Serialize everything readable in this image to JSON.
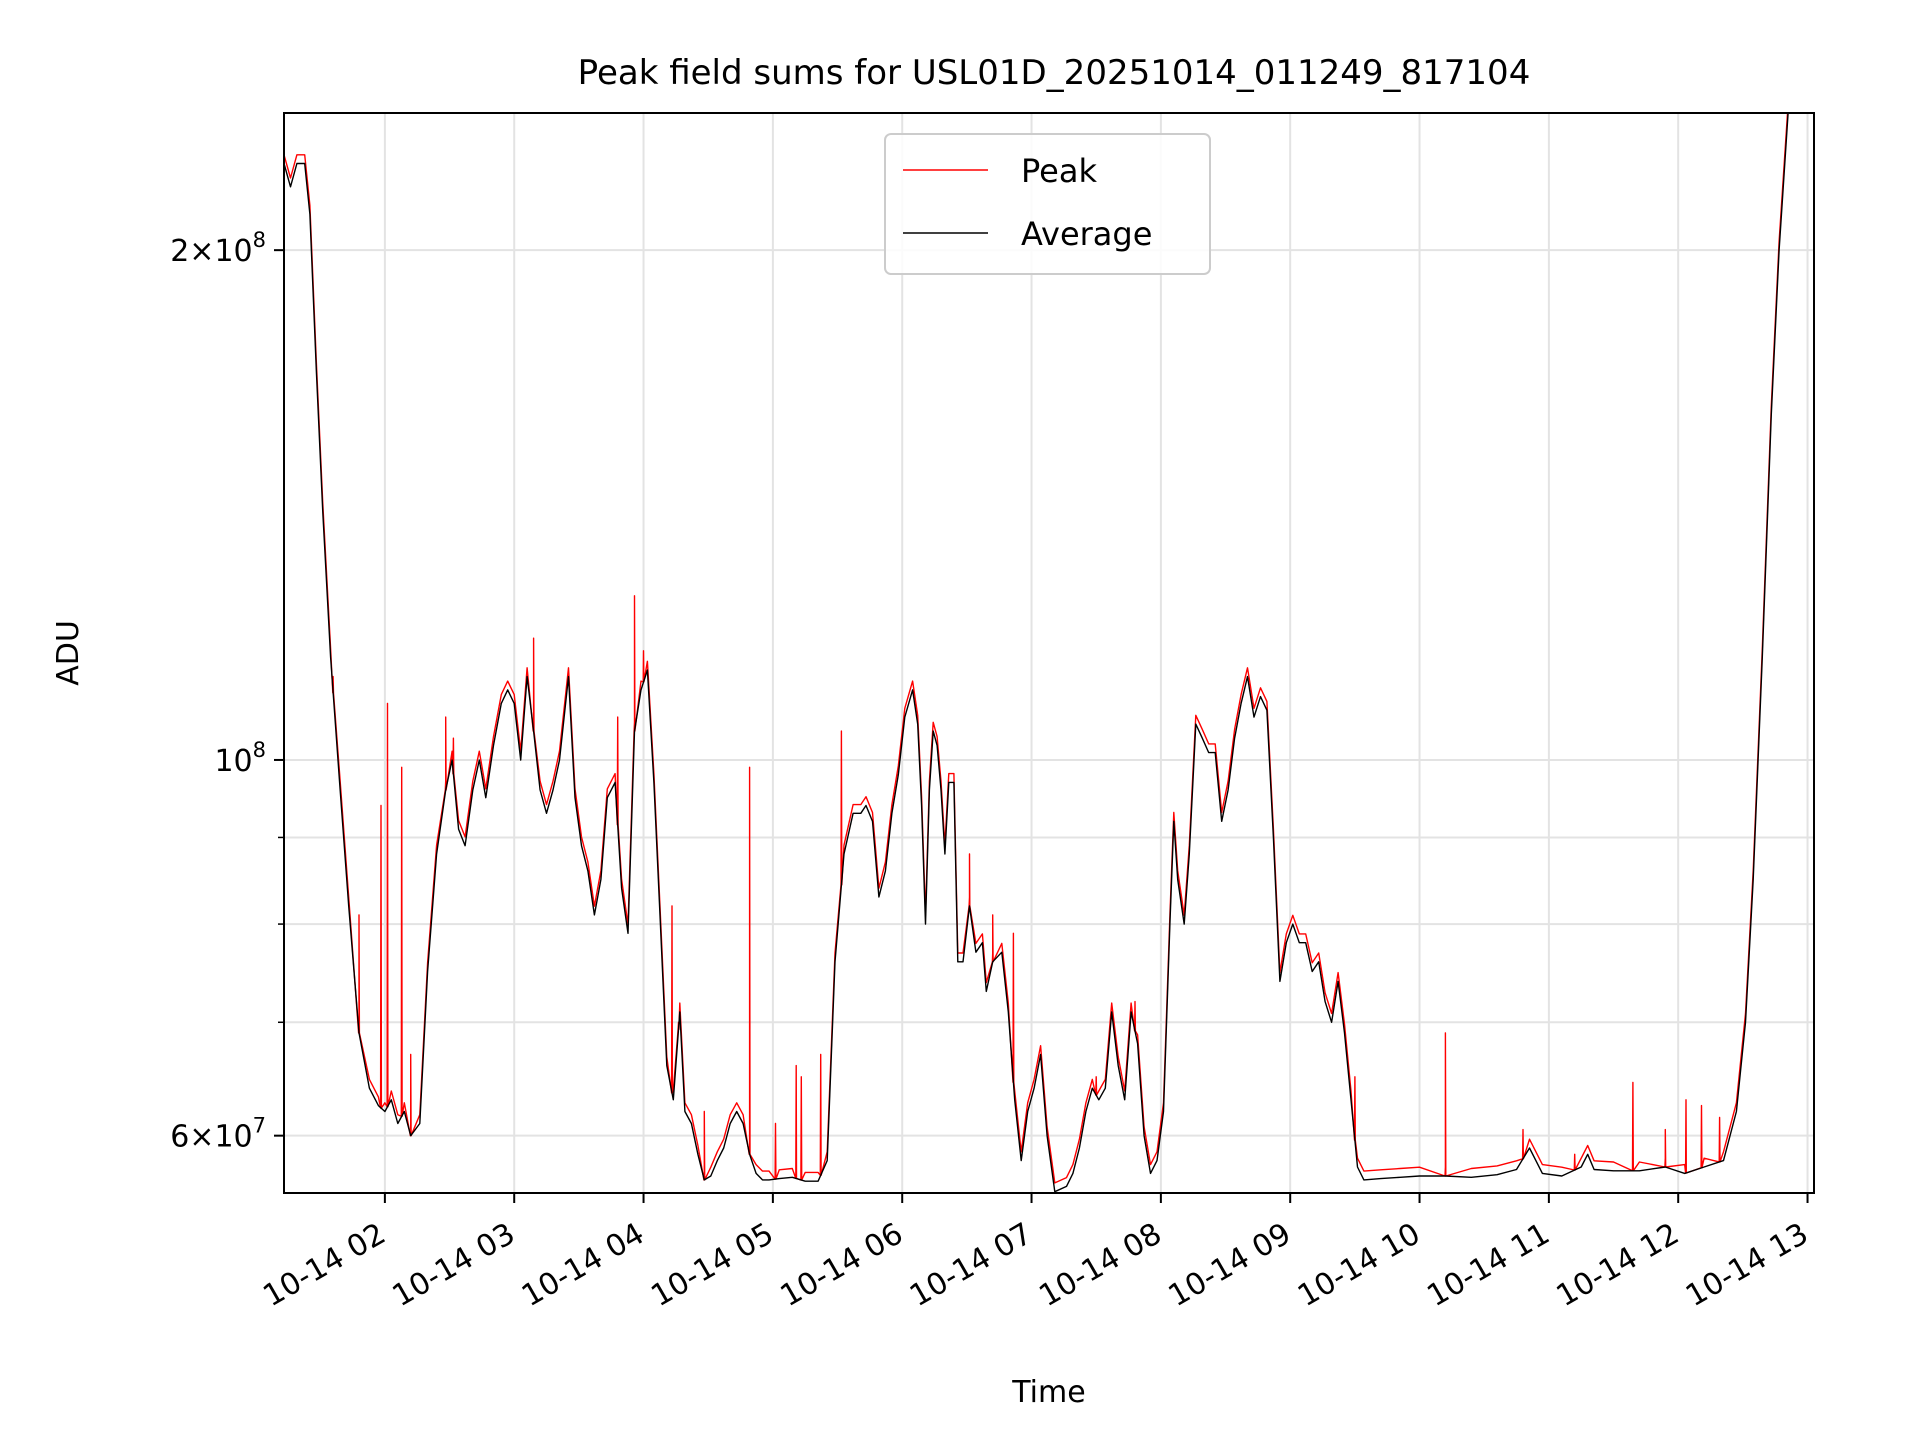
{
  "chart_data": {
    "type": "line",
    "title": "Peak field sums for USL01D_20251014_011249_817104",
    "xlabel": "Time",
    "ylabel": "ADU",
    "yscale": "log",
    "xlim": [
      1.22,
      13.05
    ],
    "ylim": [
      55500000,
      241000000
    ],
    "grid": true,
    "legend_position": "top-center",
    "x_ticks": [
      {
        "value": 2,
        "label": "10-14 02"
      },
      {
        "value": 3,
        "label": "10-14 03"
      },
      {
        "value": 4,
        "label": "10-14 04"
      },
      {
        "value": 5,
        "label": "10-14 05"
      },
      {
        "value": 6,
        "label": "10-14 06"
      },
      {
        "value": 7,
        "label": "10-14 07"
      },
      {
        "value": 8,
        "label": "10-14 08"
      },
      {
        "value": 9,
        "label": "10-14 09"
      },
      {
        "value": 10,
        "label": "10-14 10"
      },
      {
        "value": 11,
        "label": "10-14 11"
      },
      {
        "value": 12,
        "label": "10-14 12"
      },
      {
        "value": 13,
        "label": "10-14 13"
      }
    ],
    "y_major_ticks": [
      {
        "value": 60000000,
        "base": "6",
        "mult": "×",
        "pow": "10",
        "exp": "7"
      },
      {
        "value": 100000000,
        "base": "",
        "mult": "",
        "pow": "10",
        "exp": "8"
      },
      {
        "value": 200000000,
        "base": "2",
        "mult": "×",
        "pow": "10",
        "exp": "8"
      }
    ],
    "y_minor_ticks": [
      70000000,
      80000000,
      90000000
    ],
    "series": [
      {
        "name": "Peak",
        "color": "#ff0000"
      },
      {
        "name": "Average",
        "color": "#000000"
      }
    ],
    "average_points": [
      [
        1.22,
        225000000
      ],
      [
        1.27,
        218000000
      ],
      [
        1.32,
        225000000
      ],
      [
        1.38,
        225000000
      ],
      [
        1.42,
        210000000
      ],
      [
        1.47,
        170000000
      ],
      [
        1.52,
        140000000
      ],
      [
        1.58,
        115000000
      ],
      [
        1.65,
        97000000
      ],
      [
        1.72,
        82000000
      ],
      [
        1.8,
        69000000
      ],
      [
        1.88,
        64000000
      ],
      [
        1.95,
        62500000
      ],
      [
        2.0,
        62000000
      ],
      [
        2.05,
        63000000
      ],
      [
        2.1,
        61000000
      ],
      [
        2.15,
        62000000
      ],
      [
        2.2,
        60000000
      ],
      [
        2.27,
        61000000
      ],
      [
        2.33,
        75000000
      ],
      [
        2.4,
        88000000
      ],
      [
        2.47,
        96000000
      ],
      [
        2.52,
        100000000
      ],
      [
        2.57,
        91000000
      ],
      [
        2.62,
        89000000
      ],
      [
        2.68,
        96000000
      ],
      [
        2.73,
        100000000
      ],
      [
        2.78,
        95000000
      ],
      [
        2.84,
        102000000
      ],
      [
        2.9,
        108000000
      ],
      [
        2.95,
        110000000
      ],
      [
        3.0,
        108000000
      ],
      [
        3.05,
        100000000
      ],
      [
        3.1,
        112000000
      ],
      [
        3.15,
        104000000
      ],
      [
        3.2,
        96000000
      ],
      [
        3.25,
        93000000
      ],
      [
        3.3,
        96000000
      ],
      [
        3.35,
        100000000
      ],
      [
        3.42,
        112000000
      ],
      [
        3.47,
        95000000
      ],
      [
        3.52,
        89000000
      ],
      [
        3.57,
        86000000
      ],
      [
        3.62,
        81000000
      ],
      [
        3.67,
        85000000
      ],
      [
        3.72,
        95000000
      ],
      [
        3.78,
        97000000
      ],
      [
        3.83,
        84000000
      ],
      [
        3.88,
        79000000
      ],
      [
        3.93,
        104000000
      ],
      [
        3.98,
        110000000
      ],
      [
        4.03,
        113000000
      ],
      [
        4.08,
        97000000
      ],
      [
        4.13,
        80000000
      ],
      [
        4.18,
        66000000
      ],
      [
        4.23,
        63000000
      ],
      [
        4.28,
        71000000
      ],
      [
        4.32,
        62000000
      ],
      [
        4.37,
        61000000
      ],
      [
        4.42,
        58500000
      ],
      [
        4.47,
        56500000
      ],
      [
        4.52,
        56800000
      ],
      [
        4.57,
        58000000
      ],
      [
        4.62,
        59000000
      ],
      [
        4.67,
        61000000
      ],
      [
        4.72,
        62000000
      ],
      [
        4.77,
        61000000
      ],
      [
        4.82,
        58500000
      ],
      [
        4.87,
        57000000
      ],
      [
        4.92,
        56500000
      ],
      [
        4.97,
        56500000
      ],
      [
        5.05,
        56600000
      ],
      [
        5.15,
        56700000
      ],
      [
        5.25,
        56400000
      ],
      [
        5.3,
        56400000
      ],
      [
        5.35,
        56400000
      ],
      [
        5.42,
        58000000
      ],
      [
        5.48,
        76000000
      ],
      [
        5.55,
        88000000
      ],
      [
        5.62,
        93000000
      ],
      [
        5.68,
        93000000
      ],
      [
        5.72,
        94000000
      ],
      [
        5.77,
        92000000
      ],
      [
        5.82,
        83000000
      ],
      [
        5.87,
        86000000
      ],
      [
        5.92,
        93000000
      ],
      [
        5.97,
        98000000
      ],
      [
        6.02,
        106000000
      ],
      [
        6.08,
        110000000
      ],
      [
        6.12,
        105000000
      ],
      [
        6.15,
        94000000
      ],
      [
        6.18,
        80000000
      ],
      [
        6.21,
        96000000
      ],
      [
        6.24,
        104000000
      ],
      [
        6.27,
        102000000
      ],
      [
        6.3,
        96000000
      ],
      [
        6.33,
        88000000
      ],
      [
        6.36,
        97000000
      ],
      [
        6.4,
        97000000
      ],
      [
        6.43,
        76000000
      ],
      [
        6.47,
        76000000
      ],
      [
        6.52,
        82000000
      ],
      [
        6.57,
        77000000
      ],
      [
        6.62,
        78000000
      ],
      [
        6.65,
        73000000
      ],
      [
        6.7,
        76000000
      ],
      [
        6.77,
        77000000
      ],
      [
        6.82,
        71000000
      ],
      [
        6.87,
        63000000
      ],
      [
        6.92,
        58000000
      ],
      [
        6.97,
        62000000
      ],
      [
        7.02,
        64000000
      ],
      [
        7.07,
        67000000
      ],
      [
        7.12,
        60000000
      ],
      [
        7.18,
        55600000
      ],
      [
        7.27,
        56000000
      ],
      [
        7.32,
        57000000
      ],
      [
        7.37,
        59000000
      ],
      [
        7.42,
        62000000
      ],
      [
        7.47,
        64000000
      ],
      [
        7.52,
        63000000
      ],
      [
        7.57,
        64000000
      ],
      [
        7.62,
        71000000
      ],
      [
        7.67,
        66000000
      ],
      [
        7.72,
        63000000
      ],
      [
        7.77,
        71000000
      ],
      [
        7.82,
        68000000
      ],
      [
        7.87,
        60000000
      ],
      [
        7.92,
        57000000
      ],
      [
        7.97,
        58000000
      ],
      [
        8.02,
        62000000
      ],
      [
        8.07,
        80000000
      ],
      [
        8.1,
        92000000
      ],
      [
        8.13,
        85000000
      ],
      [
        8.18,
        80000000
      ],
      [
        8.22,
        88000000
      ],
      [
        8.27,
        105000000
      ],
      [
        8.32,
        103000000
      ],
      [
        8.37,
        101000000
      ],
      [
        8.42,
        101000000
      ],
      [
        8.47,
        92000000
      ],
      [
        8.52,
        96000000
      ],
      [
        8.57,
        103000000
      ],
      [
        8.62,
        108000000
      ],
      [
        8.67,
        112000000
      ],
      [
        8.72,
        106000000
      ],
      [
        8.77,
        109000000
      ],
      [
        8.82,
        107000000
      ],
      [
        8.87,
        90000000
      ],
      [
        8.92,
        74000000
      ],
      [
        8.97,
        78000000
      ],
      [
        9.02,
        80000000
      ],
      [
        9.07,
        78000000
      ],
      [
        9.12,
        78000000
      ],
      [
        9.17,
        75000000
      ],
      [
        9.22,
        76000000
      ],
      [
        9.27,
        72000000
      ],
      [
        9.32,
        70000000
      ],
      [
        9.37,
        74000000
      ],
      [
        9.42,
        69000000
      ],
      [
        9.47,
        63000000
      ],
      [
        9.52,
        57500000
      ],
      [
        9.57,
        56500000
      ],
      [
        9.7,
        56600000
      ],
      [
        9.85,
        56700000
      ],
      [
        10.0,
        56800000
      ],
      [
        10.2,
        56800000
      ],
      [
        10.4,
        56700000
      ],
      [
        10.6,
        56900000
      ],
      [
        10.75,
        57300000
      ],
      [
        10.85,
        59000000
      ],
      [
        10.95,
        57000000
      ],
      [
        11.1,
        56800000
      ],
      [
        11.25,
        57500000
      ],
      [
        11.3,
        58500000
      ],
      [
        11.35,
        57300000
      ],
      [
        11.5,
        57200000
      ],
      [
        11.7,
        57200000
      ],
      [
        11.9,
        57500000
      ],
      [
        12.05,
        57000000
      ],
      [
        12.2,
        57500000
      ],
      [
        12.35,
        58000000
      ],
      [
        12.45,
        62000000
      ],
      [
        12.52,
        70000000
      ],
      [
        12.58,
        85000000
      ],
      [
        12.65,
        115000000
      ],
      [
        12.72,
        160000000
      ],
      [
        12.78,
        200000000
      ],
      [
        12.85,
        241000000
      ]
    ],
    "peak_spikes": [
      [
        1.6,
        112000000
      ],
      [
        1.8,
        81000000
      ],
      [
        1.97,
        94000000
      ],
      [
        2.02,
        108000000
      ],
      [
        2.13,
        99000000
      ],
      [
        2.2,
        67000000
      ],
      [
        2.47,
        106000000
      ],
      [
        2.53,
        103000000
      ],
      [
        3.15,
        118000000
      ],
      [
        3.8,
        106000000
      ],
      [
        3.93,
        125000000
      ],
      [
        4.0,
        116000000
      ],
      [
        4.22,
        82000000
      ],
      [
        4.27,
        70000000
      ],
      [
        4.47,
        62000000
      ],
      [
        4.82,
        99000000
      ],
      [
        5.02,
        61000000
      ],
      [
        5.18,
        66000000
      ],
      [
        5.22,
        65000000
      ],
      [
        5.37,
        67000000
      ],
      [
        5.53,
        104000000
      ],
      [
        6.52,
        88000000
      ],
      [
        6.7,
        81000000
      ],
      [
        6.86,
        79000000
      ],
      [
        7.5,
        65000000
      ],
      [
        7.8,
        72000000
      ],
      [
        9.5,
        65000000
      ],
      [
        10.2,
        69000000
      ],
      [
        10.8,
        60500000
      ],
      [
        11.2,
        58500000
      ],
      [
        11.65,
        64500000
      ],
      [
        11.9,
        60500000
      ],
      [
        12.06,
        63000000
      ],
      [
        12.18,
        62500000
      ],
      [
        12.32,
        61500000
      ]
    ]
  }
}
